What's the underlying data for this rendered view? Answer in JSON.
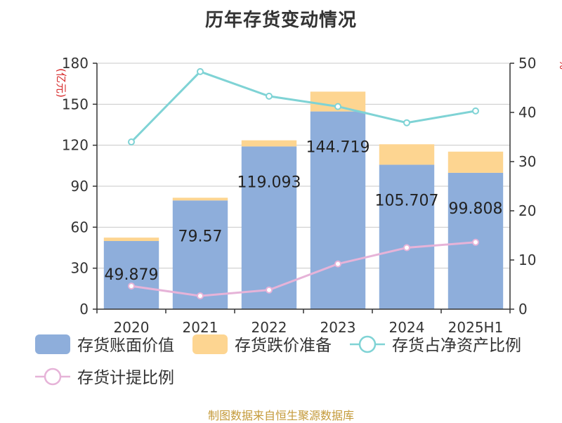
{
  "title": "历年存货变动情况",
  "source": "制图数据来自恒生聚源数据库",
  "chart_data": {
    "type": "bar",
    "title": "历年存货变动情况",
    "categories": [
      "2020",
      "2021",
      "2022",
      "2023",
      "2024",
      "2025H1"
    ],
    "ylabel_left": "(亿元)",
    "ylabel_right": "%",
    "ylim_left": [
      0,
      180
    ],
    "yticks_left": [
      0,
      30,
      60,
      90,
      120,
      150,
      180
    ],
    "ylim_right": [
      0,
      50
    ],
    "yticks_right": [
      0,
      10,
      20,
      30,
      40,
      50
    ],
    "grid": true,
    "legend_position": "bottom",
    "series": [
      {
        "name": "存货账面价值",
        "type": "bar",
        "stack": "inv",
        "axis": "left",
        "color": "#8eaedb",
        "values": [
          49.879,
          79.57,
          119.093,
          144.719,
          105.707,
          99.808
        ],
        "labels": [
          "49.879",
          "79.57",
          "119.093",
          "144.719",
          "105.707",
          "99.808"
        ]
      },
      {
        "name": "存货跌价准备",
        "type": "bar",
        "stack": "inv",
        "axis": "left",
        "color": "#fdd591",
        "values": [
          2.5,
          2.0,
          4.5,
          14.5,
          15.0,
          15.5
        ]
      },
      {
        "name": "存货占净资产比例",
        "type": "line",
        "axis": "right",
        "color": "#7fd3d5",
        "values": [
          34.0,
          48.3,
          43.3,
          41.2,
          37.9,
          40.3
        ]
      },
      {
        "name": "存货计提比例",
        "type": "line",
        "axis": "right",
        "color": "#e6b3d8",
        "values": [
          4.7,
          2.7,
          3.9,
          9.2,
          12.5,
          13.6
        ]
      }
    ]
  }
}
